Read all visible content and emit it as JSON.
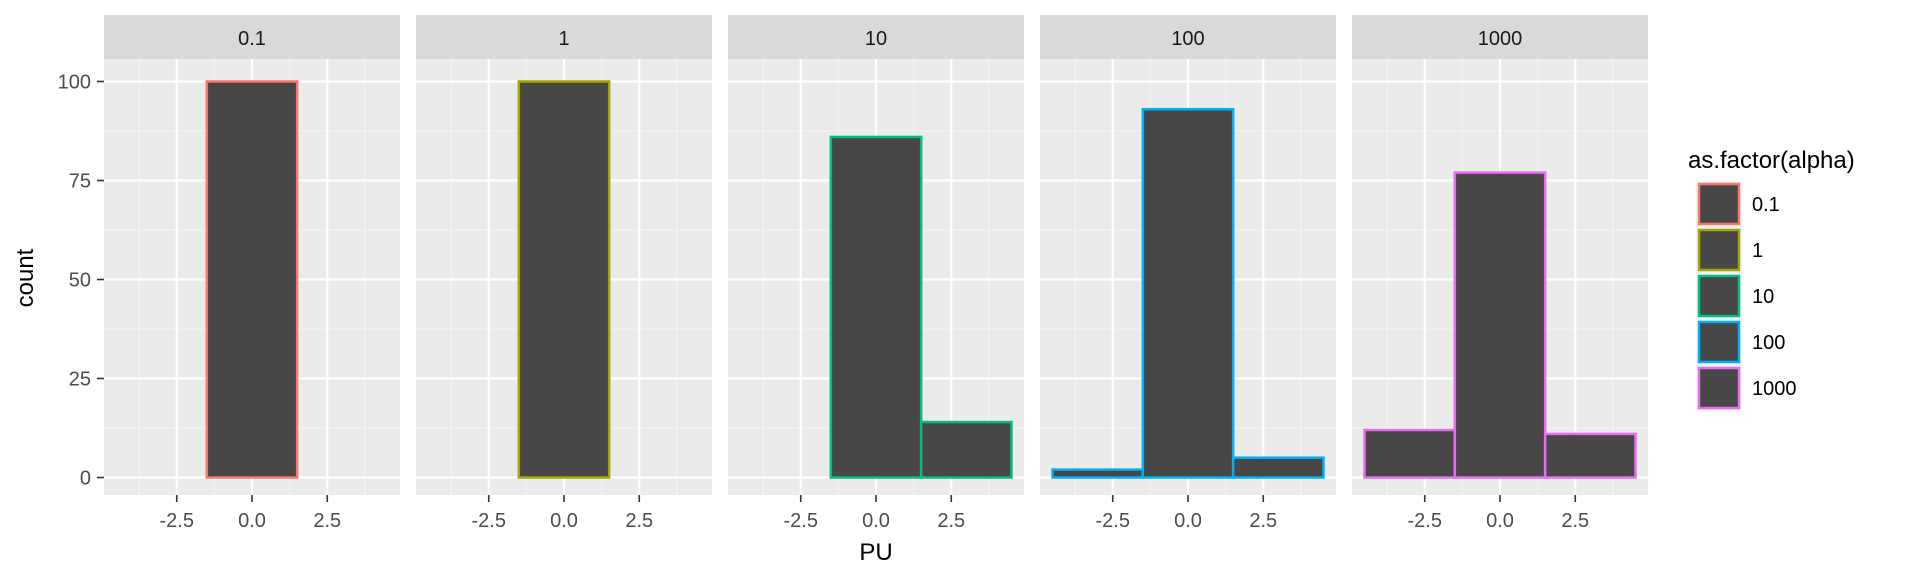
{
  "chart_data": {
    "type": "bar",
    "xlabel": "PU",
    "ylabel": "count",
    "xlim": [
      -4.5,
      4.5
    ],
    "ylim": [
      0,
      105
    ],
    "x_ticks": [
      -2.5,
      0.0,
      2.5
    ],
    "x_tick_labels": [
      "-2.5",
      "0.0",
      "2.5"
    ],
    "y_ticks": [
      0,
      25,
      50,
      75,
      100
    ],
    "y_tick_labels": [
      "0",
      "25",
      "50",
      "75",
      "100"
    ],
    "bin_edges": [
      -4.5,
      -1.5,
      1.5,
      4.5
    ],
    "grid": true,
    "legend_position": "right",
    "legend": {
      "title": "as.factor(alpha)",
      "entries": [
        "0.1",
        "1",
        "10",
        "100",
        "1000"
      ]
    },
    "fill_color": "#474747",
    "panels": [
      {
        "label": "0.1",
        "color": "#F8766D",
        "values": [
          0,
          100,
          0
        ]
      },
      {
        "label": "1",
        "color": "#A3A500",
        "values": [
          0,
          100,
          0
        ]
      },
      {
        "label": "10",
        "color": "#00BF7D",
        "values": [
          0,
          86,
          14
        ]
      },
      {
        "label": "100",
        "color": "#00B0F6",
        "values": [
          2,
          93,
          5
        ]
      },
      {
        "label": "1000",
        "color": "#E76BF3",
        "values": [
          12,
          77,
          11
        ]
      }
    ]
  }
}
